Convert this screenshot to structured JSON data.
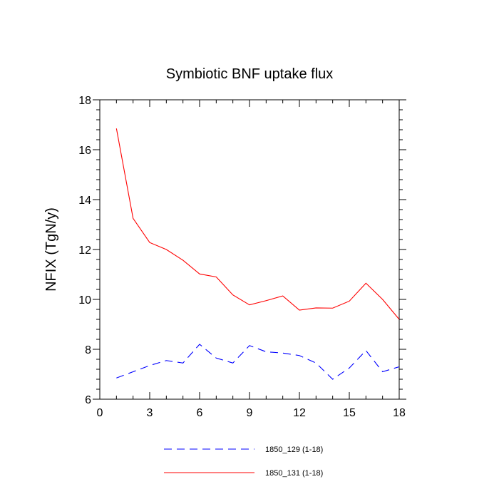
{
  "chart_data": {
    "type": "line",
    "title": "Symbiotic BNF uptake flux",
    "xlabel": "",
    "ylabel": "NFIX  (TgN/y)",
    "xlim": [
      0,
      18
    ],
    "ylim": [
      6,
      18
    ],
    "xticks": [
      0,
      3,
      6,
      9,
      12,
      15,
      18
    ],
    "yticks": [
      6,
      8,
      10,
      12,
      14,
      16,
      18
    ],
    "grid": false,
    "legend_position": "bottom",
    "series": [
      {
        "name": "1850_129 (1-18)",
        "color": "#0000ff",
        "dash": "dashed",
        "x": [
          1,
          2,
          3,
          4,
          5,
          6,
          7,
          8,
          9,
          10,
          11,
          12,
          13,
          14,
          15,
          16,
          17,
          18
        ],
        "y": [
          6.85,
          7.1,
          7.35,
          7.55,
          7.45,
          8.2,
          7.65,
          7.45,
          8.15,
          7.9,
          7.85,
          7.75,
          7.45,
          6.8,
          7.25,
          7.95,
          7.1,
          7.3
        ]
      },
      {
        "name": "1850_131 (1-18)",
        "color": "#ff0000",
        "dash": "solid",
        "x": [
          1,
          2,
          3,
          4,
          5,
          6,
          7,
          8,
          9,
          10,
          11,
          12,
          13,
          14,
          15,
          16,
          17,
          18
        ],
        "y": [
          16.85,
          13.25,
          12.28,
          12.0,
          11.57,
          11.02,
          10.9,
          10.18,
          9.78,
          9.95,
          10.14,
          9.57,
          9.66,
          9.65,
          9.93,
          10.65,
          10.0,
          9.2
        ]
      }
    ]
  }
}
